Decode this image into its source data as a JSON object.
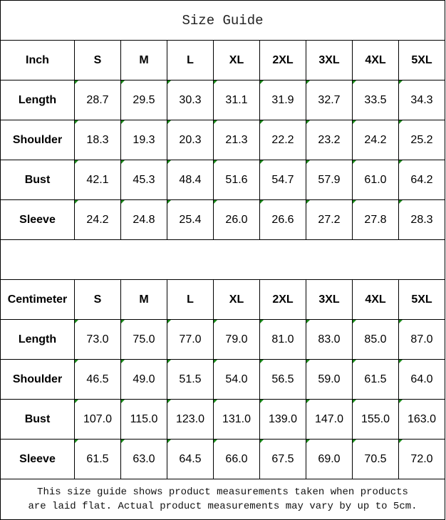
{
  "title": "Size Guide",
  "sizes": [
    "S",
    "M",
    "L",
    "XL",
    "2XL",
    "3XL",
    "4XL",
    "5XL"
  ],
  "tables": [
    {
      "unit": "Inch",
      "rows": [
        {
          "label": "Length",
          "values": [
            "28.7",
            "29.5",
            "30.3",
            "31.1",
            "31.9",
            "32.7",
            "33.5",
            "34.3"
          ]
        },
        {
          "label": "Shoulder",
          "values": [
            "18.3",
            "19.3",
            "20.3",
            "21.3",
            "22.2",
            "23.2",
            "24.2",
            "25.2"
          ]
        },
        {
          "label": "Bust",
          "values": [
            "42.1",
            "45.3",
            "48.4",
            "51.6",
            "54.7",
            "57.9",
            "61.0",
            "64.2"
          ]
        },
        {
          "label": "Sleeve",
          "values": [
            "24.2",
            "24.8",
            "25.4",
            "26.0",
            "26.6",
            "27.2",
            "27.8",
            "28.3"
          ]
        }
      ]
    },
    {
      "unit": "Centimeter",
      "rows": [
        {
          "label": "Length",
          "values": [
            "73.0",
            "75.0",
            "77.0",
            "79.0",
            "81.0",
            "83.0",
            "85.0",
            "87.0"
          ]
        },
        {
          "label": "Shoulder",
          "values": [
            "46.5",
            "49.0",
            "51.5",
            "54.0",
            "56.5",
            "59.0",
            "61.5",
            "64.0"
          ]
        },
        {
          "label": "Bust",
          "values": [
            "107.0",
            "115.0",
            "123.0",
            "131.0",
            "139.0",
            "147.0",
            "155.0",
            "163.0"
          ]
        },
        {
          "label": "Sleeve",
          "values": [
            "61.5",
            "63.0",
            "64.5",
            "66.0",
            "67.5",
            "69.0",
            "70.5",
            "72.0"
          ]
        }
      ]
    }
  ],
  "note_line1": "This size guide shows product measurements taken when products",
  "note_line2": "are laid flat. Actual product measurements may vary by up to 5cm.",
  "colors": {
    "corner_marker": "#1a8a1a",
    "border": "#000000"
  }
}
